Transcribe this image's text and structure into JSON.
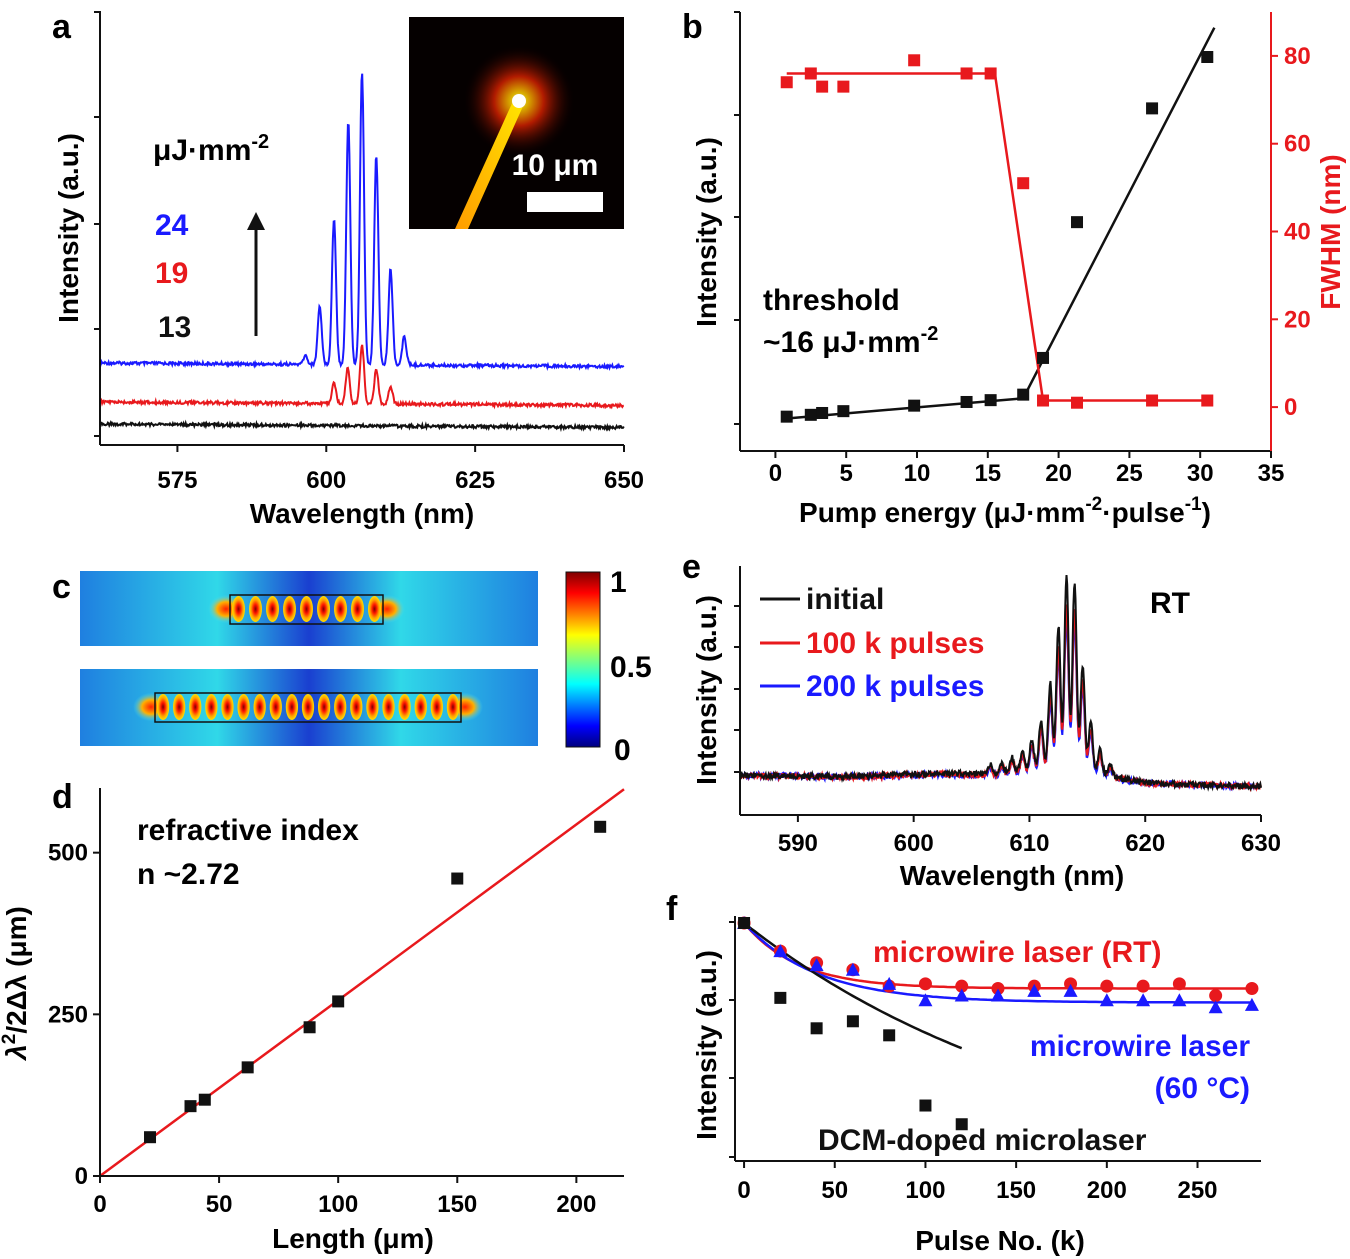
{
  "figure": {
    "panel_labels": [
      "a",
      "b",
      "c",
      "d",
      "e",
      "f"
    ],
    "colors": {
      "black": "#111111",
      "red": "#e8191d",
      "blue": "#1a1aff"
    }
  },
  "chart_data": [
    {
      "panel": "a",
      "type": "line",
      "xlabel": "Wavelength (nm)",
      "ylabel": "Intensity (a.u.)",
      "xlim": [
        562,
        650
      ],
      "xticks": [
        575,
        600,
        625,
        650
      ],
      "unit_label": "μJ·mm",
      "unit_sup": "-2",
      "legend": [
        {
          "label": "24",
          "color": "#1a1aff"
        },
        {
          "label": "19",
          "color": "#e8191d"
        },
        {
          "label": "13",
          "color": "#111111"
        }
      ],
      "inset": {
        "scale_label": "10 μm"
      },
      "series": [
        {
          "name": "24",
          "color": "#1a1aff",
          "baseline": 0.22,
          "peaks": [
            [
              596.5,
              0.03
            ],
            [
              598.9,
              0.2
            ],
            [
              601.3,
              0.5
            ],
            [
              603.7,
              0.83
            ],
            [
              606.0,
              1.0
            ],
            [
              608.4,
              0.72
            ],
            [
              610.8,
              0.33
            ],
            [
              613.1,
              0.1
            ]
          ]
        },
        {
          "name": "19",
          "color": "#e8191d",
          "baseline": 0.09,
          "peaks": [
            [
              601.3,
              0.07
            ],
            [
              603.6,
              0.12
            ],
            [
              606.0,
              0.2
            ],
            [
              608.4,
              0.12
            ],
            [
              610.8,
              0.06
            ]
          ]
        },
        {
          "name": "13",
          "color": "#111111",
          "baseline": 0.0,
          "peaks": []
        }
      ]
    },
    {
      "panel": "b",
      "type": "scatter",
      "xlabel_parts": [
        "Pump energy (μJ·mm",
        "-2",
        "·pulse",
        "-1",
        ")"
      ],
      "ylabel": "Intensity (a.u.)",
      "y2label": "FWHM (nm)",
      "xlim": [
        -2.5,
        35
      ],
      "xticks": [
        0,
        5,
        10,
        15,
        20,
        25,
        30,
        35
      ],
      "y2lim": [
        -10,
        90
      ],
      "y2ticks": [
        0,
        20,
        40,
        60,
        80
      ],
      "annotation": {
        "line1": "threshold",
        "line2": "~16 μJ·mm",
        "sup": "-2"
      },
      "intensity": {
        "color": "#111111",
        "x": [
          0.8,
          2.5,
          3.3,
          4.8,
          9.8,
          13.5,
          15.2,
          17.5,
          18.9,
          21.3,
          26.6,
          30.5
        ],
        "y": [
          0.02,
          0.025,
          0.03,
          0.035,
          0.05,
          0.06,
          0.065,
          0.08,
          0.18,
          0.55,
          0.86,
          1.0
        ],
        "fit": [
          [
            0.8,
            0.015
          ],
          [
            17.5,
            0.07
          ],
          [
            31.0,
            1.08
          ]
        ]
      },
      "fwhm": {
        "color": "#e8191d",
        "x": [
          0.8,
          2.5,
          3.3,
          4.8,
          9.8,
          13.5,
          15.2,
          17.5,
          18.9,
          21.3,
          26.6,
          30.5
        ],
        "y": [
          74,
          76,
          73,
          73,
          79,
          76,
          76,
          51,
          1.5,
          1,
          1.5,
          1.5
        ],
        "fit": [
          [
            0.8,
            76
          ],
          [
            15.5,
            76
          ],
          [
            18.9,
            1.5
          ],
          [
            30.5,
            1.5
          ]
        ]
      }
    },
    {
      "panel": "c",
      "type": "heatmap",
      "colorbar_ticks": [
        "1",
        "0.5",
        "0"
      ],
      "maps": [
        {
          "name": "short cavity",
          "lobes": 9
        },
        {
          "name": "long cavity",
          "lobes": 19
        }
      ]
    },
    {
      "panel": "d",
      "type": "scatter",
      "xlabel": "Length (μm)",
      "ylabel_parts": [
        "λ",
        "2",
        "/2Δλ (μm)"
      ],
      "xlim": [
        0,
        220
      ],
      "xticks": [
        0,
        50,
        100,
        150,
        200
      ],
      "ylim": [
        0,
        600
      ],
      "yticks": [
        0,
        250,
        500
      ],
      "annotation": {
        "line1": "refractive index",
        "line2": "n ~2.72"
      },
      "points": {
        "color": "#111111",
        "x": [
          21,
          38,
          44,
          62,
          88,
          100,
          150,
          210
        ],
        "y": [
          60,
          108,
          118,
          168,
          230,
          270,
          460,
          540
        ]
      },
      "fit": {
        "color": "#e8191d",
        "x": [
          0,
          220
        ],
        "y": [
          0,
          598
        ]
      }
    },
    {
      "panel": "e",
      "type": "line",
      "xlabel": "Wavelength (nm)",
      "ylabel": "Intensity (a.u.)",
      "xlim": [
        585,
        630
      ],
      "xticks": [
        590,
        600,
        610,
        620,
        630
      ],
      "annotation": "RT",
      "series": [
        {
          "name": "initial",
          "color": "#111111",
          "scale": 1.0
        },
        {
          "name": "100 k pulses",
          "color": "#e8191d",
          "scale": 0.86
        },
        {
          "name": "200 k pulses",
          "color": "#1a1aff",
          "scale": 0.8
        }
      ]
    },
    {
      "panel": "f",
      "type": "scatter",
      "xlabel": "Pulse No. (k)",
      "ylabel": "Intensity (a.u.)",
      "xlim": [
        -5,
        285
      ],
      "xticks": [
        0,
        50,
        100,
        150,
        200,
        250
      ],
      "ylim": [
        0,
        1.05
      ],
      "series": [
        {
          "name": "microwire laser (RT)",
          "color": "#e8191d",
          "marker": "circle",
          "x": [
            0,
            20,
            40,
            60,
            80,
            100,
            120,
            140,
            160,
            180,
            200,
            220,
            240,
            260,
            280
          ],
          "y": [
            1.0,
            0.88,
            0.83,
            0.8,
            0.73,
            0.74,
            0.73,
            0.72,
            0.73,
            0.74,
            0.73,
            0.73,
            0.74,
            0.69,
            0.72
          ],
          "fit": {
            "a": 0.72,
            "b": 0.28,
            "tau": 30
          }
        },
        {
          "name": "microwire laser (60 °C)",
          "color": "#1a1aff",
          "marker": "triangle",
          "x": [
            0,
            20,
            40,
            60,
            80,
            100,
            120,
            140,
            160,
            180,
            200,
            220,
            240,
            260,
            280
          ],
          "y": [
            1.0,
            0.88,
            0.82,
            0.8,
            0.74,
            0.67,
            0.69,
            0.69,
            0.71,
            0.71,
            0.67,
            0.67,
            0.67,
            0.64,
            0.65
          ],
          "fit": {
            "a": 0.66,
            "b": 0.34,
            "tau": 40
          }
        },
        {
          "name": "DCM-doped microlaser",
          "color": "#111111",
          "marker": "square",
          "x": [
            0,
            20,
            40,
            60,
            80,
            100,
            120
          ],
          "y": [
            1.0,
            0.68,
            0.55,
            0.58,
            0.52,
            0.22,
            0.14
          ],
          "fit": {
            "a": -0.1,
            "b": 1.1,
            "tau": 180,
            "xmax": 120
          }
        }
      ],
      "labels": {
        "rt": "microwire laser (RT)",
        "hot_line1": "microwire laser",
        "hot_line2": "(60 °C)",
        "dcm": "DCM-doped microlaser"
      }
    }
  ]
}
